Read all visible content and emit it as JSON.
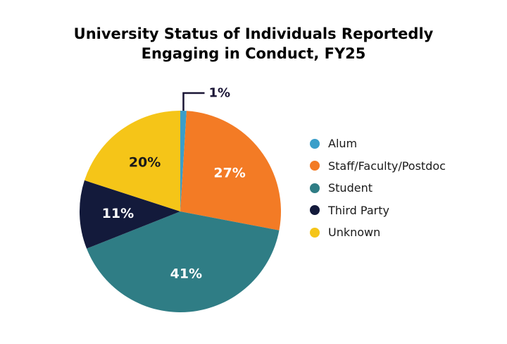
{
  "chart_data": {
    "type": "pie",
    "title_lines": [
      "University Status of Individuals Reportedly",
      "Engaging in Conduct, FY25"
    ],
    "slices": [
      {
        "label": "Alum",
        "value": 1,
        "display": "1%",
        "color": "#3a9ec9"
      },
      {
        "label": "Staff/Faculty/Postdoc",
        "value": 27,
        "display": "27%",
        "color": "#f37b25"
      },
      {
        "label": "Student",
        "value": 41,
        "display": "41%",
        "color": "#2f7d85"
      },
      {
        "label": "Third Party",
        "value": 11,
        "display": "11%",
        "color": "#131a3b"
      },
      {
        "label": "Unknown",
        "value": 20,
        "display": "20%",
        "color": "#f5c518"
      }
    ],
    "legend_position": "right"
  }
}
